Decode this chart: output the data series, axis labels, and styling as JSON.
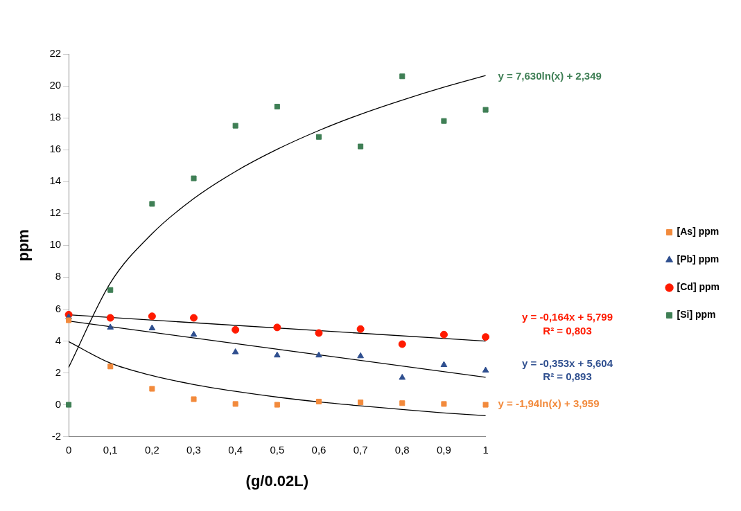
{
  "chart_data": {
    "type": "scatter",
    "xlabel": "(g/0.02L)",
    "ylabel": "ppm",
    "x": [
      0,
      0.1,
      0.2,
      0.3,
      0.4,
      0.5,
      0.6,
      0.7,
      0.8,
      0.9,
      1
    ],
    "xlim": [
      0,
      1
    ],
    "xticks": [
      0,
      {
        "value": 0.1,
        "label": "0,1"
      },
      {
        "value": 0.2,
        "label": "0,2"
      },
      {
        "value": 0.3,
        "label": "0,3"
      },
      {
        "value": 0.4,
        "label": "0,4"
      },
      {
        "value": 0.5,
        "label": "0,5"
      },
      {
        "value": 0.6,
        "label": "0,6"
      },
      {
        "value": 0.7,
        "label": "0,7"
      },
      {
        "value": 0.8,
        "label": "0,8"
      },
      {
        "value": 0.9,
        "label": "0,9"
      },
      1
    ],
    "ylim": [
      -2,
      22
    ],
    "yticks": [
      -2,
      0,
      2,
      4,
      6,
      8,
      10,
      12,
      14,
      16,
      18,
      20,
      22
    ],
    "grid": false,
    "legend": "right",
    "series": [
      {
        "name": "[As] ppm",
        "color": "#f28a3c",
        "marker": "square",
        "values": [
          5.3,
          2.4,
          1.0,
          0.35,
          0.05,
          0.0,
          0.2,
          0.15,
          0.1,
          0.05,
          0.0
        ]
      },
      {
        "name": "[Pb] ppm",
        "color": "#2f4f8f",
        "marker": "triangle",
        "values": [
          5.5,
          4.85,
          4.8,
          4.4,
          3.3,
          3.1,
          3.1,
          3.05,
          1.7,
          2.5,
          2.15
        ]
      },
      {
        "name": "[Cd] ppm",
        "color": "#ff1a00",
        "marker": "circle",
        "values": [
          5.65,
          5.45,
          5.55,
          5.45,
          4.7,
          4.85,
          4.5,
          4.75,
          3.8,
          4.4,
          4.25
        ]
      },
      {
        "name": "[Si] ppm",
        "color": "#3f7f55",
        "marker": "square",
        "values": [
          0.0,
          7.2,
          12.6,
          14.2,
          17.5,
          18.7,
          16.8,
          16.2,
          20.6,
          17.8,
          18.5
        ]
      },
      {
        "type": "line",
        "color": "#000000",
        "marker": "none",
        "x": [
          0,
          0.1,
          0.2,
          0.3,
          0.4,
          0.5,
          0.6,
          0.7,
          0.8,
          0.9,
          1
        ],
        "values": [
          3.96,
          2.61,
          1.83,
          1.27,
          0.84,
          0.48,
          0.18,
          -0.07,
          -0.3,
          -0.51,
          -0.69
        ]
      },
      {
        "type": "line",
        "color": "#000000",
        "marker": "none",
        "x": [
          0,
          1
        ],
        "values": [
          5.25,
          1.72
        ]
      },
      {
        "type": "line",
        "color": "#000000",
        "marker": "none",
        "x": [
          0,
          1
        ],
        "values": [
          5.64,
          3.99
        ]
      },
      {
        "type": "line",
        "color": "#000000",
        "marker": "none",
        "x": [
          0,
          0.1,
          0.2,
          0.3,
          0.4,
          0.5,
          0.6,
          0.7,
          0.8,
          0.9,
          1
        ],
        "values": [
          2.35,
          7.64,
          10.73,
          12.93,
          14.63,
          16.02,
          17.2,
          18.22,
          19.11,
          19.92,
          20.65
        ]
      }
    ],
    "annotations": [
      "y = 7,630ln(x) + 2,349",
      "y = -0,164x + 5,799",
      "R² = 0,803",
      "y = -0,353x + 5,604",
      "R² = 0,893",
      "y = -1,94ln(x) + 3,959"
    ]
  }
}
